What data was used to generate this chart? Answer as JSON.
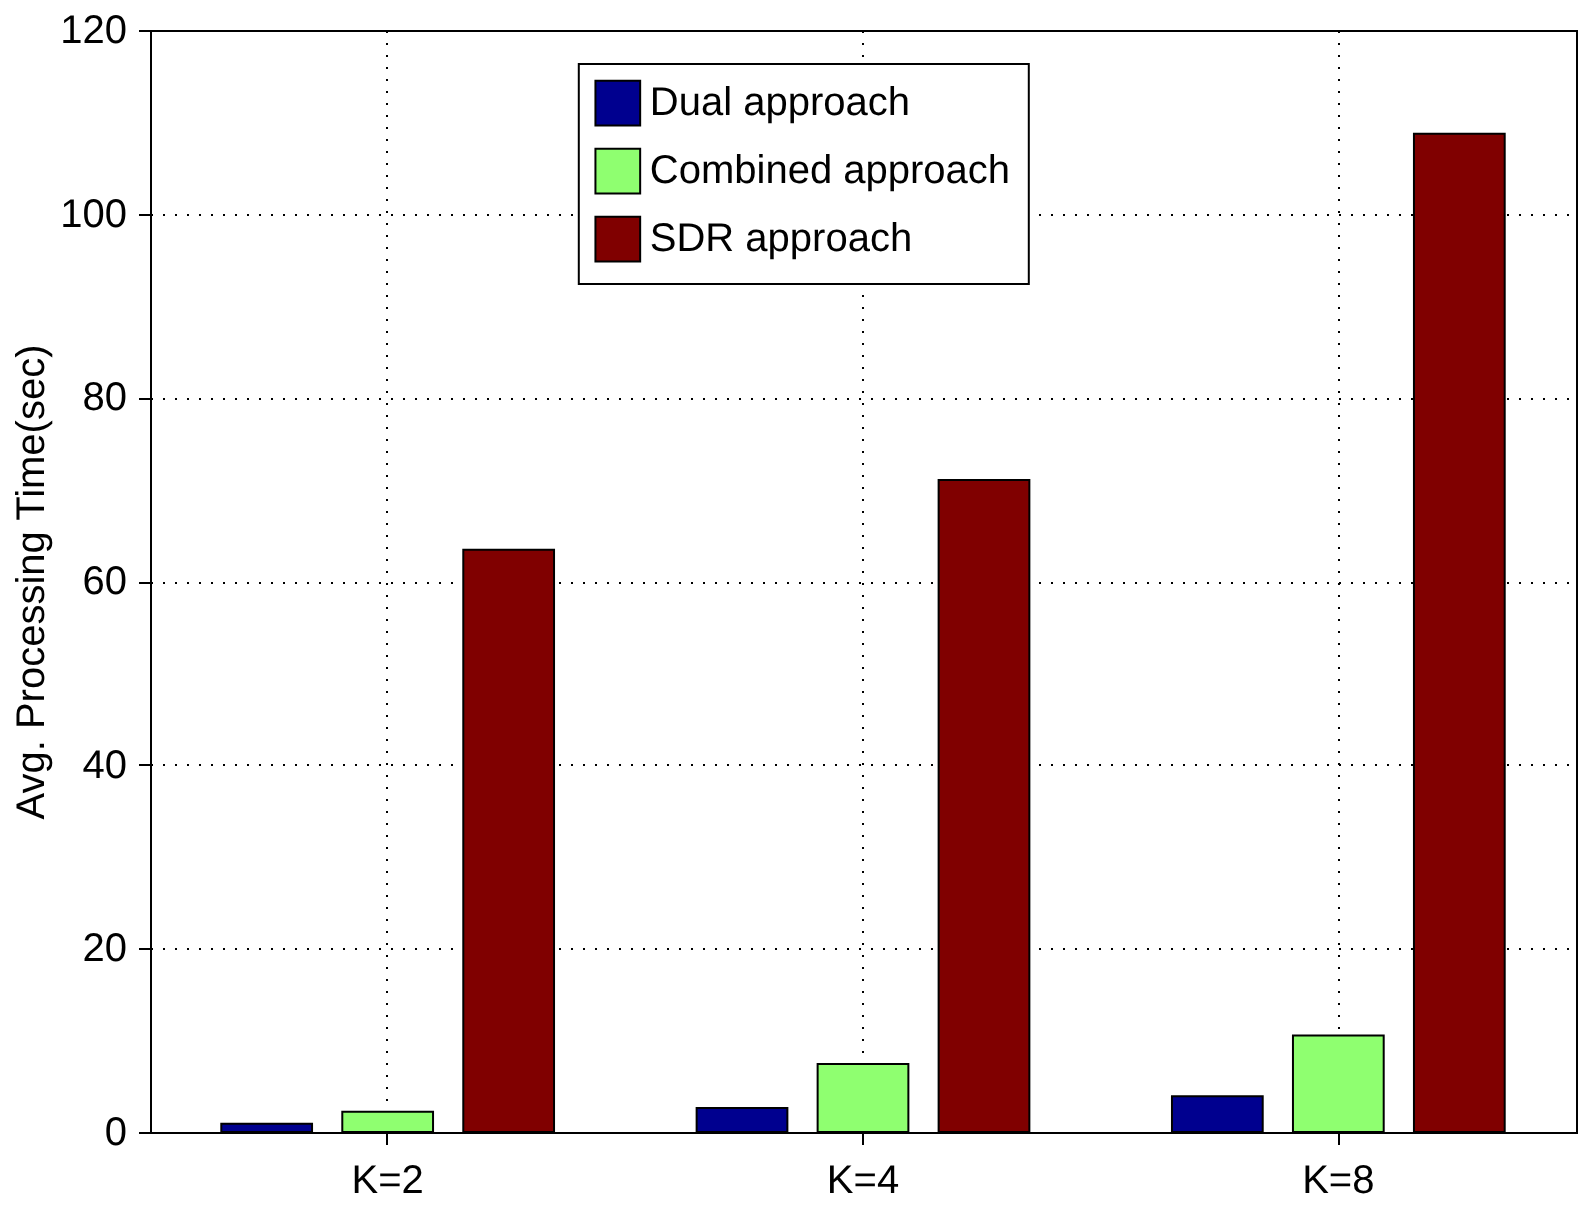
{
  "chart_data": {
    "type": "bar",
    "ylabel": "Avg. Processing Time(sec)",
    "categories": [
      "K=2",
      "K=4",
      "K=8"
    ],
    "series": [
      {
        "name": "Dual approach",
        "color": "#00008f",
        "values": [
          0.9,
          2.6,
          3.9
        ]
      },
      {
        "name": "Combined approach",
        "color": "#8fff70",
        "values": [
          2.2,
          7.4,
          10.5
        ]
      },
      {
        "name": "SDR approach",
        "color": "#800000",
        "values": [
          63.4,
          71.0,
          108.7
        ]
      }
    ],
    "ylim": [
      0,
      120
    ],
    "yticks": [
      0,
      20,
      40,
      60,
      80,
      100,
      120
    ],
    "grid": true,
    "legend": "top"
  }
}
